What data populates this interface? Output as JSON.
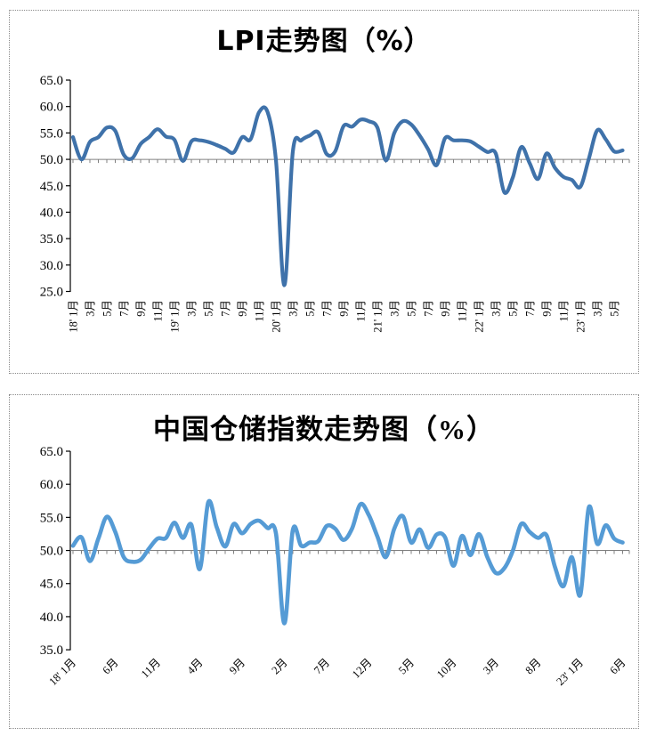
{
  "page_title": "",
  "chart_data": [
    {
      "type": "line",
      "title": "LPI走势图（%）",
      "series_label": "LPI",
      "unit": "%",
      "freq": "monthly",
      "x_start": "2018-01",
      "x_end": "2023-06",
      "ylim": [
        25,
        65
      ],
      "y_step": 5,
      "baseline": 50,
      "grid": "baseline-only",
      "legend": "none",
      "x_label_rotation": 90,
      "x_tick_every": 2,
      "line_color": "#3f72aa",
      "axis_color": "#808080",
      "y_tick_labels": [
        "65.0",
        "60.0",
        "55.0",
        "50.0",
        "45.0",
        "40.0",
        "35.0",
        "30.0",
        "25.0"
      ],
      "x_tick_labels": [
        "18' 1月",
        "3月",
        "5月",
        "7月",
        "9月",
        "11月",
        "19' 1月",
        "3月",
        "5月",
        "7月",
        "9月",
        "11月",
        "20' 1月",
        "3月",
        "5月",
        "7月",
        "9月",
        "11月",
        "21' 1月",
        "3月",
        "5月",
        "7月",
        "9月",
        "11月",
        "22' 1月",
        "3月",
        "5月",
        "7月",
        "9月",
        "11月",
        "23' 1月",
        "3月",
        "5月"
      ],
      "values": [
        54.2,
        50.0,
        53.3,
        54.2,
        56.0,
        55.4,
        50.9,
        50.2,
        52.9,
        54.2,
        55.7,
        54.3,
        53.7,
        49.7,
        53.4,
        53.6,
        53.3,
        52.7,
        52.0,
        51.3,
        54.2,
        53.8,
        58.9,
        59.0,
        49.9,
        26.2,
        51.5,
        53.6,
        54.5,
        55.1,
        51.0,
        51.5,
        56.3,
        56.2,
        57.5,
        57.2,
        56.0,
        49.8,
        55.0,
        57.2,
        56.6,
        54.5,
        51.9,
        48.9,
        54.0,
        53.6,
        53.6,
        53.4,
        52.4,
        51.4,
        51.1,
        43.8,
        46.5,
        52.3,
        49.3,
        46.3,
        51.1,
        48.4,
        46.7,
        46.1,
        44.8,
        50.1,
        55.5,
        53.8,
        51.5,
        51.7
      ]
    },
    {
      "type": "line",
      "title": "中国仓储指数走势图（%）",
      "series_label": "中国仓储指数",
      "unit": "%",
      "freq": "monthly",
      "x_start": "2018-01",
      "x_end": "2023-06",
      "ylim": [
        35,
        65
      ],
      "y_step": 5,
      "baseline": 50,
      "grid": "baseline-only",
      "legend": "none",
      "x_label_rotation": 45,
      "x_tick_every": 5,
      "line_color": "#559bd5",
      "axis_color": "#808080",
      "y_tick_labels": [
        "65.0",
        "60.0",
        "55.0",
        "50.0",
        "45.0",
        "40.0",
        "35.0"
      ],
      "x_tick_labels": [
        "18' 1月",
        "6月",
        "11月",
        "4月",
        "9月",
        "2月",
        "7月",
        "12月",
        "5月",
        "10月",
        "3月",
        "8月",
        "23' 1月",
        "6月"
      ],
      "values": [
        50.7,
        52.0,
        48.4,
        51.8,
        55.1,
        52.8,
        49.0,
        48.3,
        48.6,
        50.3,
        51.8,
        51.9,
        54.2,
        51.9,
        53.9,
        47.2,
        57.3,
        53.5,
        50.6,
        54.0,
        52.6,
        54.0,
        54.5,
        53.4,
        52.6,
        39.0,
        53.1,
        50.7,
        51.2,
        51.4,
        53.7,
        53.3,
        51.6,
        53.3,
        57.0,
        55.3,
        52.1,
        49.0,
        53.3,
        55.2,
        51.2,
        53.2,
        50.4,
        52.4,
        52.0,
        47.7,
        52.2,
        49.3,
        52.5,
        49.0,
        46.6,
        47.3,
        49.9,
        54.0,
        52.8,
        51.9,
        52.3,
        47.5,
        44.6,
        49.0,
        43.3,
        56.5,
        51.0,
        53.8,
        51.8,
        51.2
      ]
    }
  ]
}
